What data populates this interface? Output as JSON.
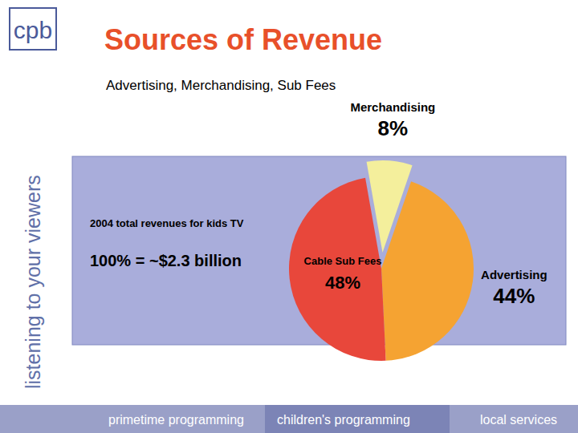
{
  "chart_data": {
    "type": "pie",
    "title": "Sources of Revenue",
    "subtitle": "Advertising, Merchandising, Sub Fees",
    "annotations": [
      "2004 total revenues for kids TV",
      "100% = ~$2.3 billion"
    ],
    "categories": [
      "Merchandising",
      "Advertising",
      "Cable Sub Fees"
    ],
    "values": [
      8,
      44,
      48
    ],
    "value_labels": [
      "8%",
      "44%",
      "48%"
    ],
    "colors": [
      "#f4ef9c",
      "#f5a332",
      "#e8473b"
    ],
    "data_labels": true
  },
  "slide": {
    "logo": "cpb",
    "tagline": "listening to your viewers",
    "nav": [
      "primetime programming",
      "children's programming",
      "local services"
    ]
  }
}
